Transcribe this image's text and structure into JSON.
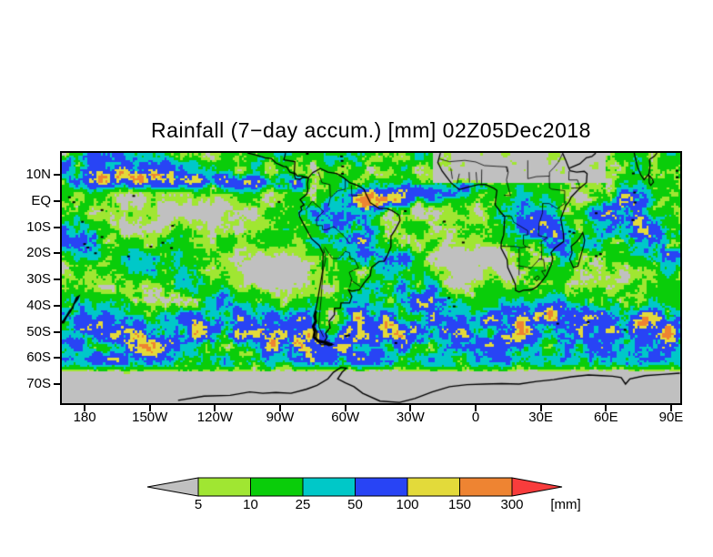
{
  "title": "Rainfall (7−day accum.) [mm] 02Z05Dec2018",
  "colors": {
    "page_background": "#ffffff",
    "no_data_gray": "#c0c0c0",
    "coastline": "#000000",
    "frame": "#000000"
  },
  "chart_data": {
    "type": "heatmap",
    "title": "Rainfall (7−day accum.) [mm] 02Z05Dec2018",
    "variable": "Rainfall (7-day accumulation)",
    "units": "mm",
    "valid_time": "02Z05Dec2018",
    "projection": "latlon",
    "lon_range_deg": [
      -190.5,
      94.2
    ],
    "lat_range_deg": [
      -77.3,
      18.35
    ],
    "grid_on": false,
    "legend_position": "bottom",
    "x_ticks": [
      {
        "label": "180",
        "lon": -180
      },
      {
        "label": "150W",
        "lon": -150
      },
      {
        "label": "120W",
        "lon": -120
      },
      {
        "label": "90W",
        "lon": -90
      },
      {
        "label": "60W",
        "lon": -60
      },
      {
        "label": "30W",
        "lon": -30
      },
      {
        "label": "0",
        "lon": 0
      },
      {
        "label": "30E",
        "lon": 30
      },
      {
        "label": "60E",
        "lon": 60
      },
      {
        "label": "90E",
        "lon": 90
      }
    ],
    "y_ticks": [
      {
        "label": "10N",
        "lat": 10
      },
      {
        "label": "EQ",
        "lat": 0
      },
      {
        "label": "10S",
        "lat": -10
      },
      {
        "label": "20S",
        "lat": -20
      },
      {
        "label": "30S",
        "lat": -30
      },
      {
        "label": "40S",
        "lat": -40
      },
      {
        "label": "50S",
        "lat": -50
      },
      {
        "label": "60S",
        "lat": -60
      },
      {
        "label": "70S",
        "lat": -70
      }
    ],
    "legend": {
      "unit_label": "[mm]",
      "thresholds": [
        5,
        10,
        25,
        50,
        100,
        150,
        300
      ],
      "threshold_labels": [
        "5",
        "10",
        "25",
        "50",
        "100",
        "150",
        "300"
      ],
      "below_min_color": "#c0c0c0",
      "band_colors": [
        "#a0e632",
        "#0acd0a",
        "#00c8c8",
        "#2844f5",
        "#e3da3a",
        "#ee8432"
      ],
      "above_max_color": "#f83c3c"
    }
  }
}
